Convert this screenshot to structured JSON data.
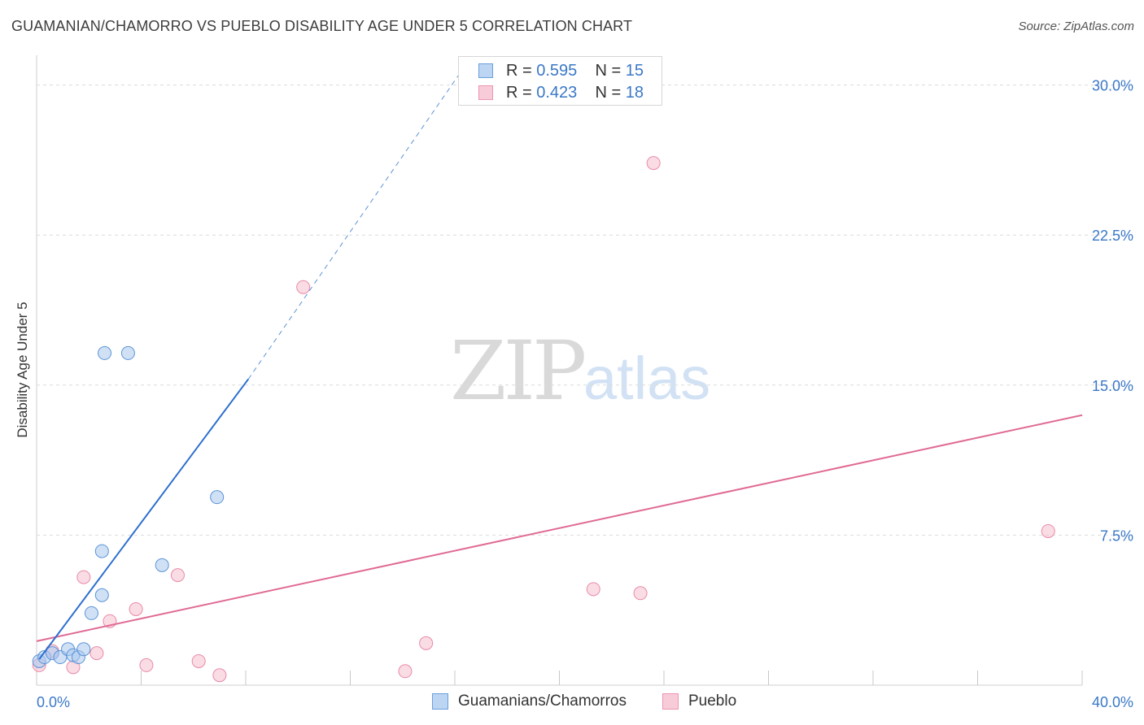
{
  "title": "GUAMANIAN/CHAMORRO VS PUEBLO DISABILITY AGE UNDER 5 CORRELATION CHART",
  "source": "Source: ZipAtlas.com",
  "watermark": {
    "zip": "ZIP",
    "atlas": "atlas"
  },
  "colors": {
    "blue_fill": "#a9c8ee",
    "blue_stroke": "#5b93d6",
    "blue_line": "#2d6fcf",
    "pink_fill": "#f5bfd0",
    "pink_stroke": "#e98aa8",
    "pink_line": "#e06a95",
    "axis_label": "#3a78c7",
    "grid": "#dcdcdc"
  },
  "legend": {
    "rows": [
      {
        "r_label": "R = ",
        "r_value": "0.595",
        "n_label": "N = ",
        "n_value": "15"
      },
      {
        "r_label": "R = ",
        "r_value": "0.423",
        "n_label": "N = ",
        "n_value": "18"
      }
    ]
  },
  "bottom_legend": [
    "Guamanians/Chamorros",
    "Pueblo"
  ],
  "chart_data": {
    "type": "scatter",
    "title": "GUAMANIAN/CHAMORRO VS PUEBLO DISABILITY AGE UNDER 5 CORRELATION CHART",
    "xlabel": "",
    "ylabel": "Disability Age Under 5",
    "xlim": [
      0,
      40
    ],
    "ylim": [
      0,
      31
    ],
    "x_tick_labels": [
      "0.0%",
      "40.0%"
    ],
    "y_ticks": [
      7.5,
      15.0,
      22.5,
      30.0
    ],
    "y_tick_labels": [
      "7.5%",
      "15.0%",
      "22.5%",
      "30.0%"
    ],
    "grid": true,
    "series": [
      {
        "name": "Guamanians/Chamorros",
        "r": 0.595,
        "n": 15,
        "points": [
          {
            "x": 0.1,
            "y": 1.2
          },
          {
            "x": 0.3,
            "y": 1.4
          },
          {
            "x": 0.6,
            "y": 1.6
          },
          {
            "x": 0.9,
            "y": 1.4
          },
          {
            "x": 1.2,
            "y": 1.8
          },
          {
            "x": 1.4,
            "y": 1.5
          },
          {
            "x": 1.6,
            "y": 1.4
          },
          {
            "x": 1.8,
            "y": 1.8
          },
          {
            "x": 2.1,
            "y": 3.6
          },
          {
            "x": 2.5,
            "y": 4.5
          },
          {
            "x": 2.6,
            "y": 16.6
          },
          {
            "x": 3.5,
            "y": 16.6
          },
          {
            "x": 4.8,
            "y": 6.0
          },
          {
            "x": 6.9,
            "y": 9.4
          },
          {
            "x": 2.5,
            "y": 6.7
          }
        ],
        "trend": {
          "x0": 0.1,
          "y0": 1.3,
          "x1": 8.1,
          "y1": 15.3,
          "dashed_to_x": 16.2,
          "dashed_to_y": 30.6
        }
      },
      {
        "name": "Pueblo",
        "r": 0.423,
        "n": 18,
        "points": [
          {
            "x": 0.1,
            "y": 1.0
          },
          {
            "x": 0.6,
            "y": 1.7
          },
          {
            "x": 1.4,
            "y": 0.9
          },
          {
            "x": 1.8,
            "y": 5.4
          },
          {
            "x": 2.3,
            "y": 1.6
          },
          {
            "x": 2.8,
            "y": 3.2
          },
          {
            "x": 3.8,
            "y": 3.8
          },
          {
            "x": 4.2,
            "y": 1.0
          },
          {
            "x": 5.4,
            "y": 5.5
          },
          {
            "x": 6.2,
            "y": 1.2
          },
          {
            "x": 7.0,
            "y": 0.5
          },
          {
            "x": 10.2,
            "y": 19.9
          },
          {
            "x": 14.1,
            "y": 0.7
          },
          {
            "x": 14.9,
            "y": 2.1
          },
          {
            "x": 21.3,
            "y": 4.8
          },
          {
            "x": 23.1,
            "y": 4.6
          },
          {
            "x": 23.6,
            "y": 26.1
          },
          {
            "x": 38.7,
            "y": 7.7
          }
        ],
        "trend": {
          "x0": 0.0,
          "y0": 2.2,
          "x1": 40.0,
          "y1": 13.5
        }
      }
    ]
  }
}
